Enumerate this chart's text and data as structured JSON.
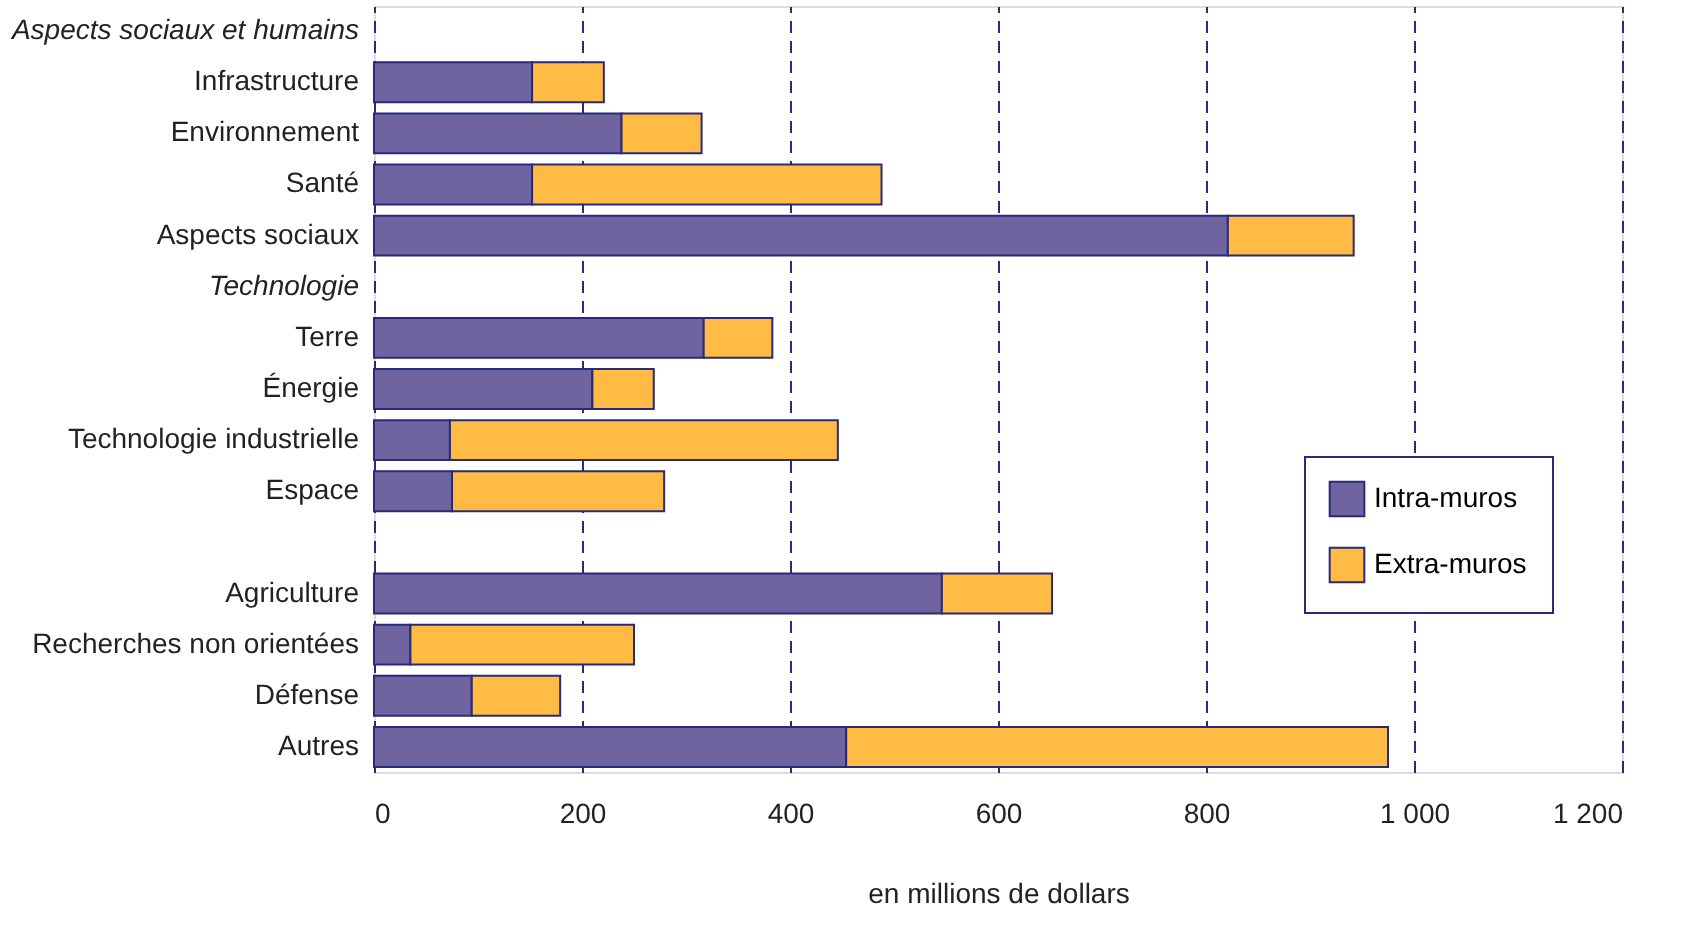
{
  "chart_data": {
    "type": "bar",
    "orientation": "horizontal",
    "stacked": true,
    "categories": [
      "Aspects sociaux et humains",
      "Infrastructure",
      "Environnement",
      "Santé",
      "Aspects sociaux",
      "Technologie",
      "Terre",
      "Énergie",
      "Technologie industrielle",
      "Espace",
      null,
      "Agriculture",
      "Recherches non orientées",
      "Défense",
      "Autres"
    ],
    "series": [
      {
        "name": "Intra-muros",
        "color": "#6f64a0",
        "values": [
          null,
          152,
          238,
          152,
          821,
          null,
          317,
          210,
          73,
          75,
          null,
          546,
          35,
          94,
          454
        ]
      },
      {
        "name": "Extra-muros",
        "color": "#ffbb44",
        "values": [
          null,
          69,
          77,
          336,
          121,
          null,
          66,
          59,
          373,
          204,
          null,
          106,
          215,
          85,
          521
        ]
      }
    ],
    "xlabel": "en millions de dollars",
    "xlim": [
      0,
      1200
    ],
    "xticks": [
      0,
      200,
      400,
      600,
      800,
      {
        "value": 1000,
        "label": "1 000"
      },
      {
        "value": 1200,
        "label": "1 200"
      }
    ],
    "grid": "x",
    "legend": "right"
  }
}
